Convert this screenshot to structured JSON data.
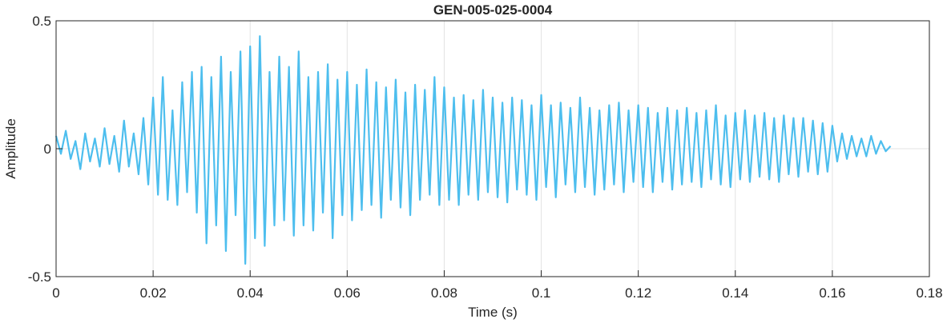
{
  "chart_data": {
    "type": "line",
    "title": "GEN-005-025-0004",
    "xlabel": "Time (s)",
    "ylabel": "Amplitude",
    "xlim": [
      0,
      0.18
    ],
    "ylim": [
      -0.5,
      0.5
    ],
    "xticks": [
      0,
      0.02,
      0.04,
      0.06,
      0.08,
      0.1,
      0.12,
      0.14,
      0.16,
      0.18
    ],
    "yticks": [
      -0.5,
      0,
      0.5
    ],
    "grid": true,
    "x": [
      0,
      0.001,
      0.002,
      0.003,
      0.004,
      0.005,
      0.006,
      0.007,
      0.008,
      0.009,
      0.01,
      0.011,
      0.012,
      0.013,
      0.014,
      0.015,
      0.016,
      0.017,
      0.018,
      0.019,
      0.02,
      0.021,
      0.022,
      0.023,
      0.024,
      0.025,
      0.026,
      0.027,
      0.028,
      0.029,
      0.03,
      0.031,
      0.032,
      0.033,
      0.034,
      0.035,
      0.036,
      0.037,
      0.038,
      0.039,
      0.04,
      0.041,
      0.042,
      0.043,
      0.044,
      0.045,
      0.046,
      0.047,
      0.048,
      0.049,
      0.05,
      0.051,
      0.052,
      0.053,
      0.054,
      0.055,
      0.056,
      0.057,
      0.058,
      0.059,
      0.06,
      0.061,
      0.062,
      0.063,
      0.064,
      0.065,
      0.066,
      0.067,
      0.068,
      0.069,
      0.07,
      0.071,
      0.072,
      0.073,
      0.074,
      0.075,
      0.076,
      0.077,
      0.078,
      0.079,
      0.08,
      0.081,
      0.082,
      0.083,
      0.084,
      0.085,
      0.086,
      0.087,
      0.088,
      0.089,
      0.09,
      0.091,
      0.092,
      0.093,
      0.094,
      0.095,
      0.096,
      0.097,
      0.098,
      0.099,
      0.1,
      0.101,
      0.102,
      0.103,
      0.104,
      0.105,
      0.106,
      0.107,
      0.108,
      0.109,
      0.11,
      0.111,
      0.112,
      0.113,
      0.114,
      0.115,
      0.116,
      0.117,
      0.118,
      0.119,
      0.12,
      0.121,
      0.122,
      0.123,
      0.124,
      0.125,
      0.126,
      0.127,
      0.128,
      0.129,
      0.13,
      0.131,
      0.132,
      0.133,
      0.134,
      0.135,
      0.136,
      0.137,
      0.138,
      0.139,
      0.14,
      0.141,
      0.142,
      0.143,
      0.144,
      0.145,
      0.146,
      0.147,
      0.148,
      0.149,
      0.15,
      0.151,
      0.152,
      0.153,
      0.154,
      0.155,
      0.156,
      0.157,
      0.158,
      0.159,
      0.16,
      0.161,
      0.162,
      0.163,
      0.164,
      0.165,
      0.166,
      0.167,
      0.168,
      0.169,
      0.17,
      0.171,
      0.172
    ],
    "series": [
      {
        "color": "#4DBEEE",
        "values": [
          0.05,
          -0.02,
          0.07,
          -0.04,
          0.03,
          -0.08,
          0.06,
          -0.05,
          0.04,
          -0.07,
          0.08,
          -0.06,
          0.05,
          -0.09,
          0.11,
          -0.07,
          0.06,
          -0.1,
          0.12,
          -0.14,
          0.2,
          -0.18,
          0.28,
          -0.2,
          0.15,
          -0.22,
          0.26,
          -0.17,
          0.3,
          -0.25,
          0.32,
          -0.37,
          0.28,
          -0.3,
          0.36,
          -0.4,
          0.3,
          -0.26,
          0.38,
          -0.45,
          0.4,
          -0.35,
          0.44,
          -0.38,
          0.3,
          -0.3,
          0.36,
          -0.28,
          0.32,
          -0.34,
          0.38,
          -0.3,
          0.28,
          -0.32,
          0.3,
          -0.25,
          0.33,
          -0.35,
          0.27,
          -0.26,
          0.3,
          -0.28,
          0.25,
          -0.24,
          0.31,
          -0.22,
          0.26,
          -0.27,
          0.24,
          -0.2,
          0.27,
          -0.23,
          0.22,
          -0.26,
          0.25,
          -0.2,
          0.23,
          -0.18,
          0.28,
          -0.22,
          0.24,
          -0.2,
          0.2,
          -0.22,
          0.21,
          -0.18,
          0.19,
          -0.2,
          0.23,
          -0.17,
          0.2,
          -0.19,
          0.18,
          -0.21,
          0.2,
          -0.16,
          0.19,
          -0.18,
          0.17,
          -0.2,
          0.21,
          -0.15,
          0.17,
          -0.19,
          0.18,
          -0.14,
          0.16,
          -0.17,
          0.2,
          -0.15,
          0.16,
          -0.18,
          0.15,
          -0.16,
          0.17,
          -0.14,
          0.18,
          -0.17,
          0.15,
          -0.13,
          0.17,
          -0.15,
          0.16,
          -0.17,
          0.14,
          -0.13,
          0.16,
          -0.16,
          0.15,
          -0.14,
          0.16,
          -0.13,
          0.14,
          -0.15,
          0.15,
          -0.12,
          0.17,
          -0.14,
          0.13,
          -0.15,
          0.14,
          -0.12,
          0.15,
          -0.13,
          0.13,
          -0.11,
          0.14,
          -0.12,
          0.12,
          -0.13,
          0.13,
          -0.1,
          0.12,
          -0.11,
          0.12,
          -0.09,
          0.11,
          -0.1,
          0.1,
          -0.09,
          0.09,
          -0.05,
          0.06,
          -0.04,
          0.05,
          -0.03,
          0.04,
          -0.03,
          0.05,
          -0.02,
          0.03,
          -0.01,
          0.01
        ]
      }
    ]
  }
}
